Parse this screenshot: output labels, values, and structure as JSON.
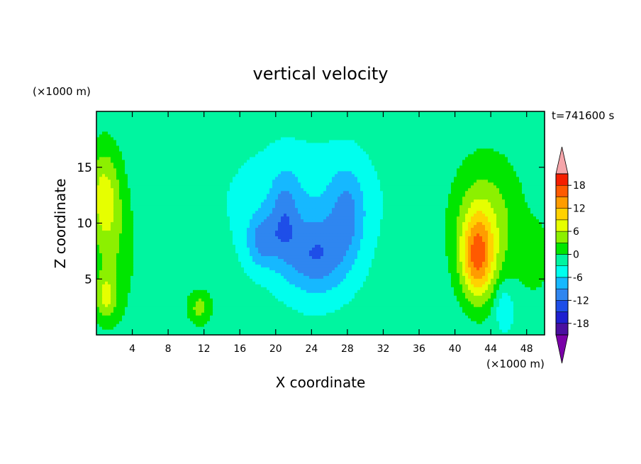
{
  "chart_data": {
    "type": "heatmap",
    "title": "vertical velocity",
    "xlabel": "X coordinate",
    "ylabel": "Z coordinate",
    "x_unit": "(×1000 m)",
    "y_unit": "(×1000 m)",
    "time_label": "t=741600 s",
    "xlim": [
      0,
      50
    ],
    "ylim": [
      0,
      20
    ],
    "x_ticks": [
      4,
      8,
      12,
      16,
      20,
      24,
      28,
      32,
      36,
      40,
      44,
      48
    ],
    "y_ticks": [
      5,
      10,
      15
    ],
    "colorbar": {
      "levels": [
        -21,
        -18,
        -15,
        -12,
        -9,
        -6,
        -3,
        0,
        3,
        6,
        9,
        12,
        15,
        18,
        21
      ],
      "tick_labels": [
        "18",
        "12",
        "6",
        "0",
        "-6",
        "-12",
        "-18"
      ],
      "tick_values": [
        18,
        12,
        6,
        0,
        -6,
        -12,
        -18
      ],
      "colors": [
        "#7a00a8",
        "#4a0fa0",
        "#1f1fd0",
        "#1e4ee8",
        "#2f86f0",
        "#16b8ff",
        "#00ffee",
        "#00f5a0",
        "#00e600",
        "#8cf000",
        "#e6ff00",
        "#ffd200",
        "#ff9c00",
        "#ff5a00",
        "#f51e00",
        "#f5a5aa"
      ],
      "extend": "both"
    },
    "field_features": [
      {
        "x": 0.8,
        "z": 12.5,
        "value": 8,
        "sx": 1.8,
        "sz": 4.5
      },
      {
        "x": 1.0,
        "z": 3.5,
        "value": 7,
        "sx": 1.2,
        "sz": 2.0
      },
      {
        "x": 2.0,
        "z": 7.5,
        "value": 4,
        "sx": 2.5,
        "sz": 7.0
      },
      {
        "x": 11.5,
        "z": 2.5,
        "value": 6,
        "sx": 1.4,
        "sz": 1.6
      },
      {
        "x": 18.5,
        "z": 8.5,
        "value": -7,
        "sx": 1.8,
        "sz": 2.5
      },
      {
        "x": 21.0,
        "z": 10.5,
        "value": -6,
        "sx": 1.6,
        "sz": 4.0
      },
      {
        "x": 24.5,
        "z": 7.0,
        "value": -9,
        "sx": 3.5,
        "sz": 3.5
      },
      {
        "x": 28.0,
        "z": 11.0,
        "value": -6,
        "sx": 2.0,
        "sz": 4.0
      },
      {
        "x": 23.0,
        "z": 12.0,
        "value": -3,
        "sx": 8.0,
        "sz": 5.0
      },
      {
        "x": 42.5,
        "z": 7.0,
        "value": 14,
        "sx": 1.8,
        "sz": 3.8
      },
      {
        "x": 43.5,
        "z": 10.0,
        "value": 7,
        "sx": 4.0,
        "sz": 6.0
      },
      {
        "x": 45.5,
        "z": 2.5,
        "value": -5,
        "sx": 1.0,
        "sz": 2.0
      },
      {
        "x": 49.0,
        "z": 7.0,
        "value": 4,
        "sx": 1.5,
        "sz": 3.0
      }
    ]
  }
}
